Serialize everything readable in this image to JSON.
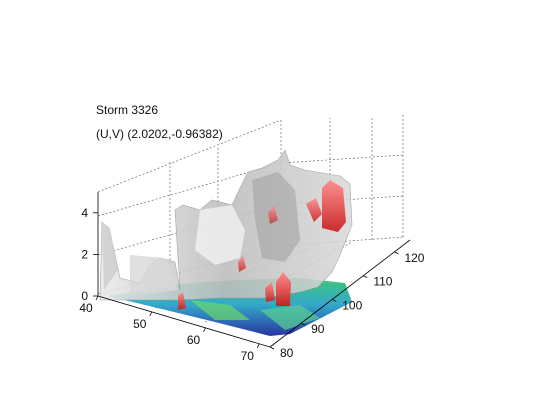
{
  "chart_data": {
    "type": "surface3d",
    "title": "Storm 3326",
    "subtitle": "(U,V) (2.0202,-0.96382)",
    "xlabel": "",
    "ylabel": "",
    "zlabel": "",
    "x_ticks": [
      "40",
      "50",
      "60",
      "70"
    ],
    "y_ticks": [
      "80",
      "90",
      "100",
      "110",
      "120"
    ],
    "z_ticks": [
      "0",
      "2",
      "4"
    ],
    "xlim": [
      40,
      72
    ],
    "ylim": [
      80,
      125
    ],
    "zlim": [
      0,
      5
    ],
    "grid": true,
    "colors": {
      "isosurface": "#c8c8c8",
      "core": "#e03030",
      "base_high": "#30c070",
      "base_mid": "#2aa0c8",
      "base_low": "#2030a0"
    }
  }
}
